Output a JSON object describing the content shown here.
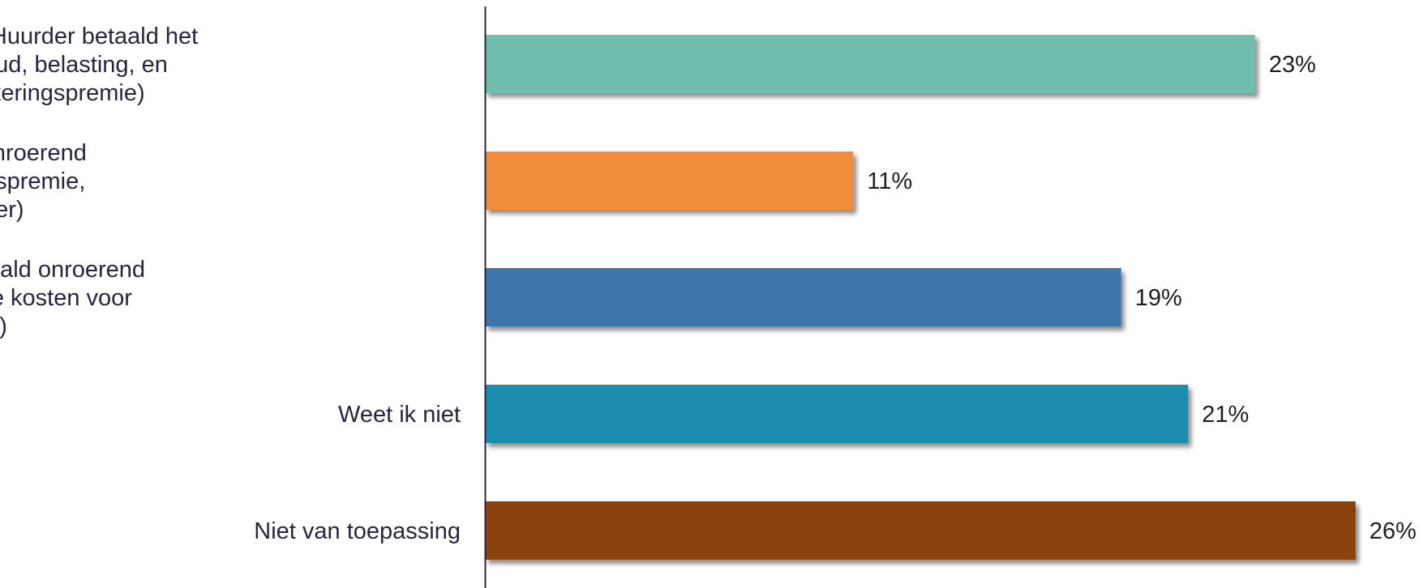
{
  "chart_data": {
    "type": "bar",
    "orientation": "horizontal",
    "title": "",
    "xlabel": "",
    "ylabel": "",
    "xlim": [
      0,
      26
    ],
    "grid": false,
    "legend": "none",
    "value_format": "percent",
    "categories": [
      [
        "Triple net (Huurder betaald het",
        "onderhoud, belasting, en",
        "verzekeringspremie)"
      ],
      [
        "Double net (huurder betaald onroerend",
        "goed belasting en verzekeringspremie,",
        "overige kosten verhuurder)"
      ],
      [
        "Single net (huurder betaald onroerend",
        "goed belasting, overige kosten voor",
        "verhuurder)"
      ],
      [
        "Weet ik niet"
      ],
      [
        "Niet van toepassing"
      ]
    ],
    "values": [
      23,
      11,
      19,
      21,
      26
    ],
    "value_labels": [
      "23%",
      "11%",
      "19%",
      "21%",
      "26%"
    ],
    "colors": [
      "#6fbfad",
      "#f28e3a",
      "#3c74ab",
      "#1f8dae",
      "#8b4309"
    ],
    "axis_color": "#2b2440"
  }
}
